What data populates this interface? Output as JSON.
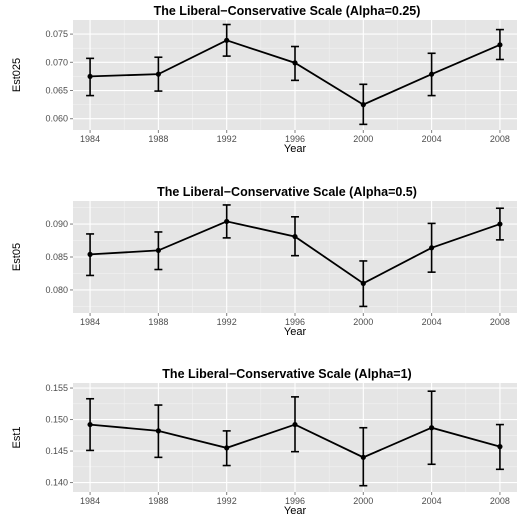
{
  "chart_data": [
    {
      "type": "line",
      "title": "The Liberal−Conservative Scale (Alpha=0.25)",
      "xlabel": "Year",
      "ylabel": "Est025",
      "x": [
        1984,
        1988,
        1992,
        1996,
        2000,
        2004,
        2008
      ],
      "y": [
        0.0675,
        0.0679,
        0.0739,
        0.0699,
        0.0625,
        0.0679,
        0.0731
      ],
      "y_low": [
        0.0641,
        0.0649,
        0.0711,
        0.0668,
        0.059,
        0.0641,
        0.0705
      ],
      "y_high": [
        0.0707,
        0.0709,
        0.0767,
        0.0728,
        0.0661,
        0.0716,
        0.0758
      ],
      "xticks": [
        "1984",
        "1988",
        "1992",
        "1996",
        "2000",
        "2004",
        "2008"
      ],
      "yticks": [
        "0.060",
        "0.065",
        "0.070",
        "0.075"
      ],
      "xlim": [
        1983,
        2009
      ],
      "ylim": [
        0.058,
        0.0775
      ],
      "grid": true,
      "error_bars": true
    },
    {
      "type": "line",
      "title": "The Liberal−Conservative Scale (Alpha=0.5)",
      "xlabel": "Year",
      "ylabel": "Est05",
      "x": [
        1984,
        1988,
        1992,
        1996,
        2000,
        2004,
        2008
      ],
      "y": [
        0.0854,
        0.086,
        0.0904,
        0.0881,
        0.081,
        0.0864,
        0.09
      ],
      "y_low": [
        0.0822,
        0.0831,
        0.0879,
        0.0852,
        0.0775,
        0.0827,
        0.0876
      ],
      "y_high": [
        0.0885,
        0.0888,
        0.0929,
        0.0911,
        0.0844,
        0.0901,
        0.0924
      ],
      "xticks": [
        "1984",
        "1988",
        "1992",
        "1996",
        "2000",
        "2004",
        "2008"
      ],
      "yticks": [
        "0.080",
        "0.085",
        "0.090"
      ],
      "xlim": [
        1983,
        2009
      ],
      "ylim": [
        0.0765,
        0.0935
      ],
      "grid": true,
      "error_bars": true
    },
    {
      "type": "line",
      "title": "The Liberal−Conservative Scale (Alpha=1)",
      "xlabel": "Year",
      "ylabel": "Est1",
      "x": [
        1984,
        1988,
        1992,
        1996,
        2000,
        2004,
        2008
      ],
      "y": [
        0.1492,
        0.1482,
        0.1455,
        0.1492,
        0.144,
        0.1487,
        0.1457
      ],
      "y_low": [
        0.1451,
        0.144,
        0.1427,
        0.1449,
        0.1395,
        0.1429,
        0.1421
      ],
      "y_high": [
        0.1533,
        0.1523,
        0.1482,
        0.1536,
        0.1487,
        0.1545,
        0.1492
      ],
      "xticks": [
        "1984",
        "1988",
        "1992",
        "1996",
        "2000",
        "2004",
        "2008"
      ],
      "yticks": [
        "0.140",
        "0.145",
        "0.150",
        "0.155"
      ],
      "xlim": [
        1983,
        2009
      ],
      "ylim": [
        0.1385,
        0.1558
      ],
      "grid": true,
      "error_bars": true
    }
  ],
  "colors": {
    "panel_background": "#e5e5e5",
    "grid_major": "#ffffff",
    "grid_minor": "#f2f2f2",
    "line": "#000000",
    "tick_label": "#4d4d4d"
  }
}
